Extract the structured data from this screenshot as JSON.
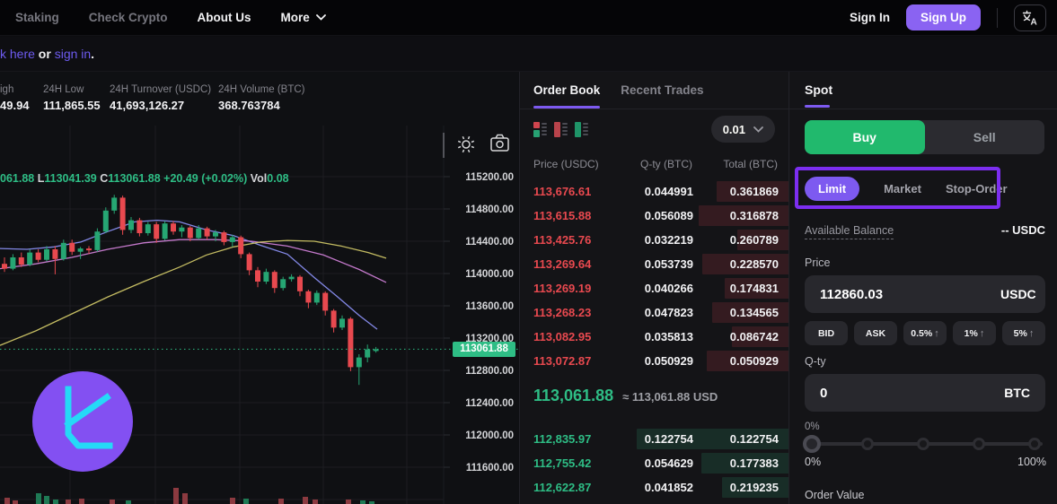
{
  "nav": {
    "items": [
      {
        "label": "Staking",
        "active": false,
        "chevron": false
      },
      {
        "label": "Check Crypto",
        "active": false,
        "chevron": false
      },
      {
        "label": "About Us",
        "active": true,
        "chevron": false
      },
      {
        "label": "More",
        "active": true,
        "chevron": true
      }
    ],
    "sign_in": "Sign In",
    "sign_up": "Sign Up"
  },
  "banner": {
    "parts": [
      {
        "text": "k here",
        "link": true
      },
      {
        "text": " or ",
        "link": false
      },
      {
        "text": "sign in",
        "link": true
      },
      {
        "text": ".",
        "link": false
      }
    ]
  },
  "stats": [
    {
      "label": "igh",
      "value": "49.94",
      "x": 0
    },
    {
      "label": "24H Low",
      "value": "111,865.55",
      "x": 48
    },
    {
      "label": "24H Turnover (USDC)",
      "value": "41,693,126.27",
      "x": 122
    },
    {
      "label": "24H Volume (BTC)",
      "value": "368.763784",
      "x": 243
    }
  ],
  "chart": {
    "legend": [
      {
        "k": "",
        "v": "061.88"
      },
      {
        "k": "L",
        "v": "113041.39"
      },
      {
        "k": "C",
        "v": "113061.88"
      },
      {
        "k": "",
        "v": "+20.49 (+0.02%)"
      },
      {
        "k": "Vol",
        "v": "0.08"
      }
    ],
    "last_price_badge": "113061.88",
    "chart_data": {
      "type": "candlestick",
      "ylim": [
        111400,
        115600
      ],
      "y_ticks": [
        {
          "label": "115200.00",
          "price": 115200
        },
        {
          "label": "114800.00",
          "price": 114800
        },
        {
          "label": "114400.00",
          "price": 114400
        },
        {
          "label": "114000.00",
          "price": 114000
        },
        {
          "label": "113600.00",
          "price": 113600
        },
        {
          "label": "113200.00",
          "price": 113200
        },
        {
          "label": "112800.00",
          "price": 112800
        },
        {
          "label": "112400.00",
          "price": 112400
        },
        {
          "label": "112000.00",
          "price": 112000
        },
        {
          "label": "111600.00",
          "price": 111600
        }
      ],
      "last_price": 113061.88,
      "grid": {
        "vertical_x": [
          78,
          173,
          267,
          360,
          453
        ],
        "extra_hline_y": 417
      },
      "candles_ohlc": [
        [
          114120,
          114200,
          114020,
          114060
        ],
        [
          114060,
          114240,
          114040,
          114200
        ],
        [
          114200,
          114260,
          114080,
          114110
        ],
        [
          114110,
          114300,
          114090,
          114260
        ],
        [
          114260,
          114300,
          114140,
          114170
        ],
        [
          114170,
          114340,
          114150,
          114300
        ],
        [
          114300,
          114340,
          113990,
          114180
        ],
        [
          114180,
          114420,
          114160,
          114380
        ],
        [
          114380,
          114420,
          114230,
          114270
        ],
        [
          114270,
          114330,
          114180,
          114310
        ],
        [
          114310,
          114340,
          114240,
          114290
        ],
        [
          114290,
          114560,
          114270,
          114520
        ],
        [
          114520,
          114820,
          114500,
          114780
        ],
        [
          114780,
          114975,
          114740,
          114940
        ],
        [
          114940,
          114965,
          114480,
          114540
        ],
        [
          114540,
          114700,
          114500,
          114660
        ],
        [
          114660,
          114690,
          114460,
          114500
        ],
        [
          114500,
          114640,
          114470,
          114610
        ],
        [
          114610,
          114640,
          114380,
          114430
        ],
        [
          114430,
          114650,
          114410,
          114620
        ],
        [
          114620,
          114650,
          114480,
          114520
        ],
        [
          114520,
          114600,
          114450,
          114570
        ],
        [
          114570,
          114590,
          114400,
          114440
        ],
        [
          114440,
          114600,
          114420,
          114560
        ],
        [
          114560,
          114580,
          114420,
          114460
        ],
        [
          114460,
          114540,
          114400,
          114510
        ],
        [
          114510,
          114530,
          114350,
          114390
        ],
        [
          114390,
          114480,
          114330,
          114450
        ],
        [
          114450,
          114470,
          114190,
          114240
        ],
        [
          114240,
          114260,
          113980,
          114040
        ],
        [
          114040,
          114080,
          113830,
          113900
        ],
        [
          113900,
          114060,
          113870,
          114020
        ],
        [
          114020,
          114040,
          113760,
          113820
        ],
        [
          113820,
          113960,
          113790,
          113930
        ],
        [
          113930,
          113990,
          113900,
          113960
        ],
        [
          113960,
          113980,
          113720,
          113780
        ],
        [
          113780,
          113800,
          113570,
          113640
        ],
        [
          113640,
          113790,
          113610,
          113760
        ],
        [
          113760,
          113780,
          113480,
          113540
        ],
        [
          113540,
          113560,
          113270,
          113330
        ],
        [
          113330,
          113480,
          113300,
          113440
        ],
        [
          113440,
          113460,
          112790,
          112840
        ],
        [
          112840,
          113000,
          112620,
          112960
        ],
        [
          112960,
          113120,
          112900,
          113060
        ],
        [
          113060,
          113090,
          113020,
          113062
        ]
      ],
      "ma_lines": [
        {
          "name": "ma-fast",
          "color": "#8a8ff2",
          "points": [
            [
              0,
              114310
            ],
            [
              30,
              114300
            ],
            [
              60,
              114330
            ],
            [
              90,
              114390
            ],
            [
              120,
              114520
            ],
            [
              150,
              114640
            ],
            [
              175,
              114660
            ],
            [
              200,
              114640
            ],
            [
              230,
              114540
            ],
            [
              260,
              114470
            ],
            [
              290,
              114350
            ],
            [
              320,
              114240
            ],
            [
              350,
              113950
            ],
            [
              375,
              113720
            ],
            [
              400,
              113480
            ],
            [
              420,
              113310
            ]
          ]
        },
        {
          "name": "ma-mid",
          "color": "#cf7fd6",
          "points": [
            [
              0,
              114060
            ],
            [
              40,
              114120
            ],
            [
              80,
              114200
            ],
            [
              120,
              114300
            ],
            [
              160,
              114380
            ],
            [
              200,
              114420
            ],
            [
              240,
              114420
            ],
            [
              280,
              114400
            ],
            [
              320,
              114340
            ],
            [
              360,
              114230
            ],
            [
              400,
              114050
            ],
            [
              430,
              113890
            ]
          ]
        },
        {
          "name": "ma-slow",
          "color": "#cdc566",
          "points": [
            [
              0,
              113110
            ],
            [
              40,
              113290
            ],
            [
              80,
              113500
            ],
            [
              120,
              113710
            ],
            [
              160,
              113900
            ],
            [
              200,
              114080
            ],
            [
              230,
              114230
            ],
            [
              260,
              114330
            ],
            [
              290,
              114390
            ],
            [
              320,
              114410
            ],
            [
              350,
              114400
            ],
            [
              380,
              114340
            ],
            [
              410,
              114260
            ],
            [
              430,
              114190
            ]
          ]
        }
      ],
      "volume_bars": [
        [
          5,
          7,
          "down"
        ],
        [
          14,
          4,
          "down"
        ],
        [
          40,
          12,
          "up"
        ],
        [
          49,
          9,
          "up"
        ],
        [
          59,
          5,
          "up"
        ],
        [
          73,
          5,
          "down"
        ],
        [
          88,
          6,
          "down"
        ],
        [
          122,
          5,
          "down"
        ],
        [
          140,
          4,
          "up"
        ],
        [
          193,
          18,
          "down"
        ],
        [
          203,
          12,
          "down"
        ],
        [
          256,
          7,
          "down"
        ],
        [
          271,
          6,
          "up"
        ],
        [
          310,
          6,
          "down"
        ],
        [
          337,
          8,
          "down"
        ],
        [
          348,
          5,
          "down"
        ],
        [
          385,
          5,
          "down"
        ],
        [
          401,
          4,
          "up"
        ],
        [
          411,
          3,
          "up"
        ]
      ],
      "colors": {
        "up": "#26a673",
        "down": "#e8494f",
        "last_price_line": "#2ebd85"
      }
    }
  },
  "orderbook": {
    "tabs": [
      {
        "label": "Order Book",
        "active": true
      },
      {
        "label": "Recent Trades",
        "active": false
      }
    ],
    "grouping": "0.01",
    "columns": [
      "Price (USDC)",
      "Q-ty (BTC)",
      "Total (BTC)"
    ],
    "asks": [
      {
        "price": "113,676.61",
        "qty": "0.044991",
        "total": "0.361869"
      },
      {
        "price": "113,615.88",
        "qty": "0.056089",
        "total": "0.316878"
      },
      {
        "price": "113,425.76",
        "qty": "0.032219",
        "total": "0.260789"
      },
      {
        "price": "113,269.64",
        "qty": "0.053739",
        "total": "0.228570"
      },
      {
        "price": "113,269.19",
        "qty": "0.040266",
        "total": "0.174831"
      },
      {
        "price": "113,268.23",
        "qty": "0.047823",
        "total": "0.134565"
      },
      {
        "price": "113,082.95",
        "qty": "0.035813",
        "total": "0.086742"
      },
      {
        "price": "113,072.87",
        "qty": "0.050929",
        "total": "0.050929"
      }
    ],
    "mid": {
      "price": "113,061.88",
      "approx": "≈ 113,061.88 USD"
    },
    "bids": [
      {
        "price": "112,835.97",
        "qty": "0.122754",
        "total": "0.122754"
      },
      {
        "price": "112,755.42",
        "qty": "0.054629",
        "total": "0.177383"
      },
      {
        "price": "112,622.87",
        "qty": "0.041852",
        "total": "0.219235"
      }
    ]
  },
  "panel": {
    "market_tab": "Spot",
    "buy": "Buy",
    "sell": "Sell",
    "order_types": [
      {
        "label": "Limit",
        "active": true
      },
      {
        "label": "Market",
        "active": false
      },
      {
        "label": "Stop-Order",
        "active": false
      }
    ],
    "available_balance_label": "Available Balance",
    "available_balance_value": "-- USDC",
    "price_label": "Price",
    "price_value": "112860.03",
    "price_unit": "USDC",
    "quick_buttons": [
      {
        "label": "BID",
        "arrow": false
      },
      {
        "label": "ASK",
        "arrow": false
      },
      {
        "label": "0.5%",
        "arrow": true
      },
      {
        "label": "1%",
        "arrow": true
      },
      {
        "label": "5%",
        "arrow": true
      }
    ],
    "qty_label": "Q-ty",
    "qty_value": "0",
    "qty_unit": "BTC",
    "slider": {
      "current": "0%",
      "min": "0%",
      "max": "100%"
    },
    "order_value_label": "Order Value"
  },
  "colors": {
    "accent_purple": "#7d5af0",
    "annotation_purple": "#7c2ef0",
    "buy_green": "#21b96d",
    "ask_red": "#e8494f",
    "bid_green": "#2ebd85",
    "logo_circle": "#8350f2",
    "logo_glyph": "#25d9f7"
  }
}
